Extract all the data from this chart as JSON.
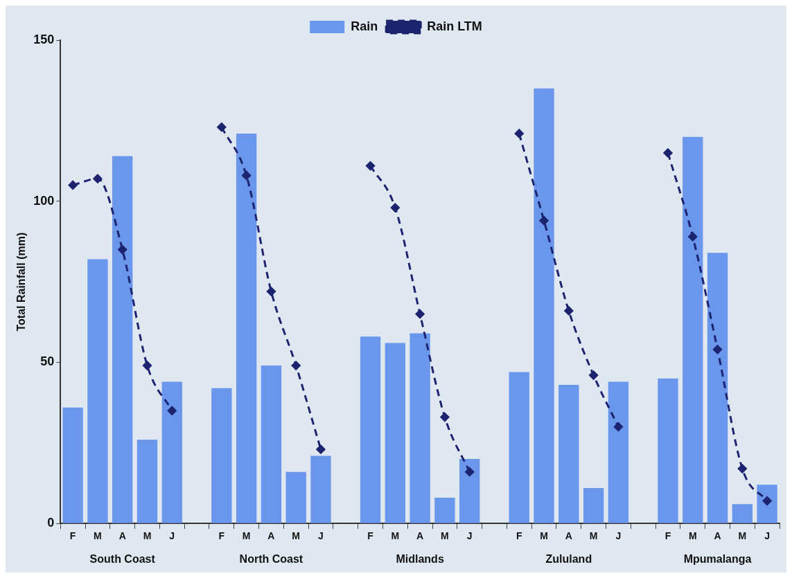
{
  "chart_data": {
    "type": "bar",
    "ylabel": "Total Rainfall (mm)",
    "categories": [
      "F",
      "M",
      "A",
      "M",
      "J",
      null,
      "F",
      "M",
      "A",
      "M",
      "J",
      null,
      "F",
      "M",
      "A",
      "M",
      "J",
      null,
      "F",
      "M",
      "A",
      "M",
      "J",
      null,
      "F",
      "M",
      "A",
      "M",
      "J"
    ],
    "series": [
      {
        "name": "Rain",
        "color": "#6a96ec",
        "values": [
          36,
          82,
          114,
          26,
          44,
          null,
          42,
          121,
          49,
          16,
          21,
          null,
          58,
          56,
          59,
          8,
          20,
          null,
          47,
          135,
          43,
          11,
          44,
          null,
          45,
          120,
          84,
          6,
          12
        ]
      },
      {
        "name": "Rain LTM",
        "type": "line",
        "color": "#1c2470",
        "marker": "diamond",
        "line_style": "dashed",
        "values": [
          105,
          107,
          85,
          49,
          35,
          null,
          123,
          108,
          72,
          49,
          23,
          null,
          111,
          98,
          65,
          33,
          16,
          null,
          121,
          94,
          66,
          46,
          30,
          null,
          115,
          89,
          54,
          17,
          7
        ]
      }
    ],
    "annotations": [
      "South Coast",
      "North Coast",
      "Midlands",
      "Zululand",
      "Mpumalanga"
    ],
    "ylim": [
      0,
      150
    ],
    "yticks": [
      0,
      50,
      100,
      150
    ],
    "grid": false,
    "legend": "top"
  }
}
